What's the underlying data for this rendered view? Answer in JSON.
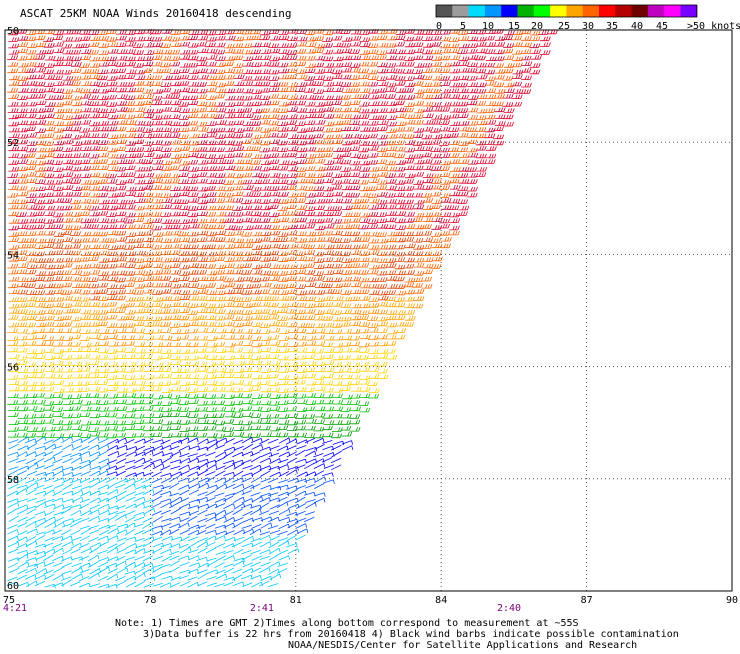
{
  "title": "ASCAT 25KM NOAA Winds 20160418 descending",
  "legend": {
    "colors": [
      "#555555",
      "#9c9c9c",
      "#00dcff",
      "#0096ff",
      "#0000ff",
      "#00b400",
      "#00ff00",
      "#ffff00",
      "#ffa500",
      "#ff6400",
      "#ff0000",
      "#b40000",
      "#6e0000",
      "#c000c0",
      "#ff00ff",
      "#7800ff"
    ],
    "labels": [
      "0",
      "5",
      "10",
      "15",
      "20",
      "25",
      "30",
      "35",
      "40",
      "45",
      ">50 knots"
    ]
  },
  "map": {
    "lon_ticks": [
      "75",
      "78",
      "81",
      "84",
      "87",
      "90"
    ],
    "lat_labels": [
      "50",
      "52",
      "54",
      "56",
      "58",
      "60"
    ],
    "times": [
      {
        "label": "4:21",
        "lon": 75
      },
      {
        "label": "2:41",
        "lon": 80.3
      },
      {
        "label": "2:40",
        "lon": 85.4
      }
    ],
    "swath_note": "wind barbs colored by speed; swath east edge runs from ~86.3E at top to ~80.5E at bottom"
  },
  "notes": {
    "line1": "Note: 1) Times are GMT 2)Times along bottom correspond to measurement at ~55S",
    "line2": "3)Data buffer is 22 hrs from 20160418 4) Black wind barbs indicate possible contamination",
    "line3": "NOAA/NESDIS/Center for Satellite Applications and Research"
  },
  "colors": {
    "frame": "#000000",
    "grid": "#555555",
    "time_label": "#7a007a"
  }
}
